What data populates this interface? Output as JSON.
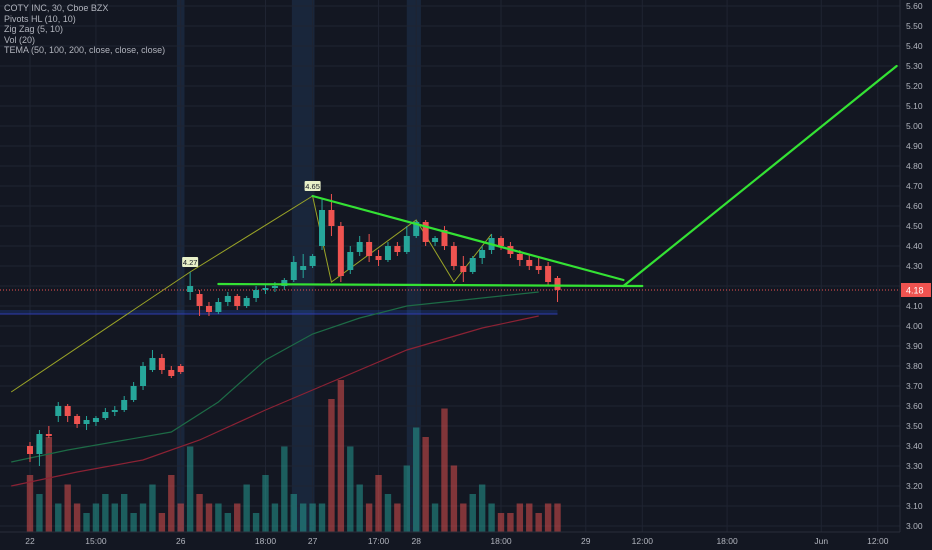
{
  "legend": {
    "symbol_line": "COTY INC, 30, Cboe BZX",
    "indicators": [
      "Pivots HL (10, 10)",
      "Zig Zag (5, 10)",
      "Vol (20)",
      "TEMA (50, 100, 200, close, close, close)"
    ]
  },
  "chart_data": {
    "type": "candlestick",
    "y_axis": {
      "ticks": [
        "3.00",
        "3.10",
        "3.20",
        "3.30",
        "3.40",
        "3.50",
        "3.60",
        "3.70",
        "3.80",
        "3.90",
        "4.00",
        "4.10",
        "4.20",
        "4.30",
        "4.40",
        "4.50",
        "4.60",
        "4.70",
        "4.80",
        "4.90",
        "5.00",
        "5.10",
        "5.20",
        "5.30",
        "5.40",
        "5.50",
        "5.60"
      ],
      "range": [
        2.97,
        5.63
      ]
    },
    "x_axis": {
      "ticks": [
        {
          "label": "22",
          "bar": 0
        },
        {
          "label": "15:00",
          "bar": 7
        },
        {
          "label": "26",
          "bar": 16
        },
        {
          "label": "18:00",
          "bar": 25
        },
        {
          "label": "27",
          "bar": 30
        },
        {
          "label": "17:00",
          "bar": 37
        },
        {
          "label": "28",
          "bar": 41
        },
        {
          "label": "18:00",
          "bar": 50
        },
        {
          "label": "29",
          "bar": 59
        },
        {
          "label": "12:00",
          "bar": 65
        },
        {
          "label": "18:00",
          "bar": 74
        },
        {
          "label": "Jun",
          "bar": 84
        },
        {
          "label": "12:00",
          "bar": 90
        }
      ]
    },
    "last_price": {
      "label": "4.18",
      "value": 4.18,
      "color": "#ef5350"
    },
    "session_highlight_bars": [
      [
        15.6,
        16.4
      ],
      [
        27.8,
        30.2
      ],
      [
        40.0,
        41.5
      ]
    ],
    "candles": [
      [
        3.4,
        3.42,
        3.32,
        3.36
      ],
      [
        3.36,
        3.48,
        3.3,
        3.46
      ],
      [
        3.46,
        3.5,
        3.44,
        3.45
      ],
      [
        3.55,
        3.62,
        3.52,
        3.6
      ],
      [
        3.6,
        3.61,
        3.52,
        3.55
      ],
      [
        3.55,
        3.56,
        3.49,
        3.51
      ],
      [
        3.51,
        3.55,
        3.48,
        3.53
      ],
      [
        3.52,
        3.55,
        3.5,
        3.54
      ],
      [
        3.54,
        3.59,
        3.53,
        3.57
      ],
      [
        3.57,
        3.6,
        3.55,
        3.58
      ],
      [
        3.58,
        3.65,
        3.57,
        3.63
      ],
      [
        3.63,
        3.72,
        3.62,
        3.7
      ],
      [
        3.7,
        3.82,
        3.68,
        3.8
      ],
      [
        3.78,
        3.88,
        3.77,
        3.84
      ],
      [
        3.84,
        3.86,
        3.76,
        3.78
      ],
      [
        3.78,
        3.8,
        3.74,
        3.75
      ],
      [
        3.8,
        3.81,
        3.76,
        3.77
      ],
      [
        4.17,
        4.27,
        4.13,
        4.2
      ],
      [
        4.16,
        4.18,
        4.05,
        4.1
      ],
      [
        4.1,
        4.12,
        4.05,
        4.07
      ],
      [
        4.07,
        4.14,
        4.06,
        4.12
      ],
      [
        4.12,
        4.17,
        4.1,
        4.15
      ],
      [
        4.15,
        4.16,
        4.08,
        4.1
      ],
      [
        4.1,
        4.15,
        4.09,
        4.14
      ],
      [
        4.14,
        4.2,
        4.12,
        4.18
      ],
      [
        4.18,
        4.21,
        4.16,
        4.19
      ],
      [
        4.19,
        4.22,
        4.17,
        4.2
      ],
      [
        4.2,
        4.24,
        4.18,
        4.23
      ],
      [
        4.23,
        4.35,
        4.22,
        4.32
      ],
      [
        4.28,
        4.36,
        4.24,
        4.3
      ],
      [
        4.3,
        4.36,
        4.29,
        4.35
      ],
      [
        4.4,
        4.64,
        4.38,
        4.58
      ],
      [
        4.58,
        4.66,
        4.45,
        4.5
      ],
      [
        4.5,
        4.52,
        4.22,
        4.25
      ],
      [
        4.28,
        4.4,
        4.26,
        4.37
      ],
      [
        4.37,
        4.45,
        4.35,
        4.42
      ],
      [
        4.42,
        4.46,
        4.32,
        4.35
      ],
      [
        4.35,
        4.38,
        4.3,
        4.33
      ],
      [
        4.33,
        4.42,
        4.32,
        4.4
      ],
      [
        4.4,
        4.42,
        4.35,
        4.37
      ],
      [
        4.37,
        4.5,
        4.36,
        4.45
      ],
      [
        4.45,
        4.53,
        4.44,
        4.52
      ],
      [
        4.52,
        4.53,
        4.4,
        4.42
      ],
      [
        4.42,
        4.45,
        4.4,
        4.44
      ],
      [
        4.48,
        4.5,
        4.38,
        4.4
      ],
      [
        4.4,
        4.42,
        4.28,
        4.3
      ],
      [
        4.3,
        4.35,
        4.22,
        4.27
      ],
      [
        4.27,
        4.35,
        4.26,
        4.34
      ],
      [
        4.34,
        4.4,
        4.31,
        4.38
      ],
      [
        4.38,
        4.46,
        4.36,
        4.44
      ],
      [
        4.44,
        4.45,
        4.38,
        4.4
      ],
      [
        4.4,
        4.42,
        4.34,
        4.36
      ],
      [
        4.36,
        4.38,
        4.3,
        4.33
      ],
      [
        4.33,
        4.36,
        4.28,
        4.3
      ],
      [
        4.3,
        4.34,
        4.26,
        4.28
      ],
      [
        4.3,
        4.32,
        4.2,
        4.22
      ],
      [
        4.24,
        4.25,
        4.12,
        4.18
      ]
    ],
    "volume": [
      6,
      4,
      10,
      3,
      5,
      3,
      2,
      3,
      4,
      3,
      4,
      2,
      3,
      5,
      2,
      6,
      3,
      9,
      4,
      3,
      3,
      2,
      3,
      5,
      2,
      6,
      3,
      9,
      4,
      3,
      3,
      3,
      14,
      16,
      9,
      5,
      3,
      6,
      4,
      3,
      7,
      11,
      10,
      3,
      13,
      7,
      3,
      4,
      5,
      3,
      2,
      2,
      3,
      3,
      2,
      3,
      3
    ],
    "pivot_labels": [
      {
        "label": "4.27",
        "bar": 17,
        "value": 4.27
      },
      {
        "label": "4.65",
        "bar": 30,
        "value": 4.65
      }
    ],
    "zigzag": [
      [
        -2,
        3.67
      ],
      [
        17,
        4.27
      ],
      [
        30,
        4.65
      ],
      [
        32,
        4.22
      ],
      [
        41,
        4.53
      ],
      [
        45,
        4.22
      ],
      [
        49,
        4.46
      ]
    ],
    "tema_50": [
      [
        -2,
        3.32
      ],
      [
        4,
        3.38
      ],
      [
        15,
        3.47
      ],
      [
        20,
        3.62
      ],
      [
        25,
        3.83
      ],
      [
        30,
        3.96
      ],
      [
        35,
        4.04
      ],
      [
        40,
        4.1
      ],
      [
        46,
        4.13
      ],
      [
        54,
        4.17
      ]
    ],
    "tema_100": [
      [
        -2,
        3.2
      ],
      [
        5,
        3.27
      ],
      [
        12,
        3.33
      ],
      [
        18,
        3.43
      ],
      [
        25,
        3.58
      ],
      [
        32,
        3.72
      ],
      [
        40,
        3.88
      ],
      [
        48,
        3.99
      ],
      [
        54,
        4.05
      ]
    ],
    "blue_band": [
      4.06,
      4.08
    ],
    "drawing_lines": [
      [
        [
          30,
          4.65
        ],
        [
          63,
          4.23
        ]
      ],
      [
        [
          20,
          4.21
        ],
        [
          65,
          4.2
        ]
      ],
      [
        [
          63,
          4.2
        ],
        [
          92,
          5.3
        ]
      ]
    ]
  }
}
